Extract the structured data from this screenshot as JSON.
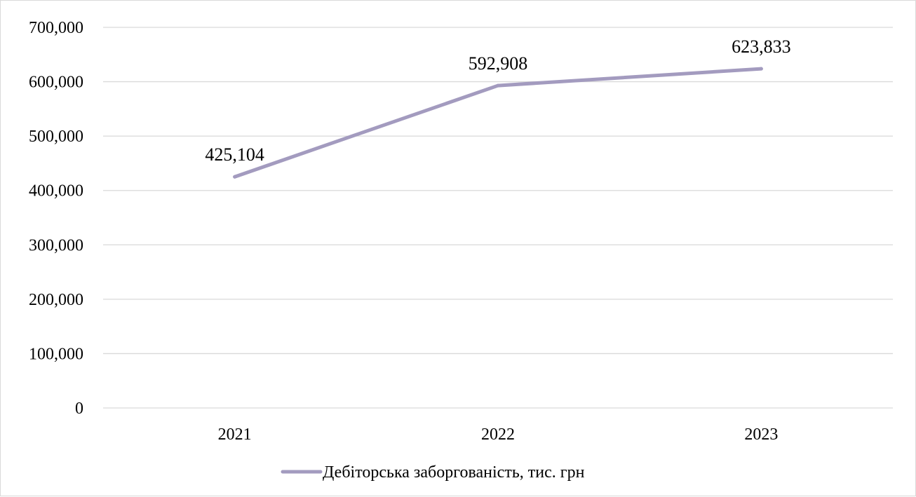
{
  "chart_data": {
    "type": "line",
    "title": "",
    "xlabel": "",
    "ylabel": "",
    "categories": [
      "2021",
      "2022",
      "2023"
    ],
    "series": [
      {
        "name": "Дебіторська заборгованість, тис. грн",
        "values": [
          425104,
          592908,
          623833
        ],
        "value_labels": [
          "425,104",
          "592,908",
          "623,833"
        ],
        "color": "#a39bbf"
      }
    ],
    "ylim": [
      0,
      700000
    ],
    "yticks": [
      0,
      100000,
      200000,
      300000,
      400000,
      500000,
      600000,
      700000
    ],
    "ytick_labels": [
      "0",
      "100,000",
      "200,000",
      "300,000",
      "400,000",
      "500,000",
      "600,000",
      "700,000"
    ],
    "grid": true,
    "legend": "bottom",
    "gridline_color": "#d9d9d9"
  }
}
